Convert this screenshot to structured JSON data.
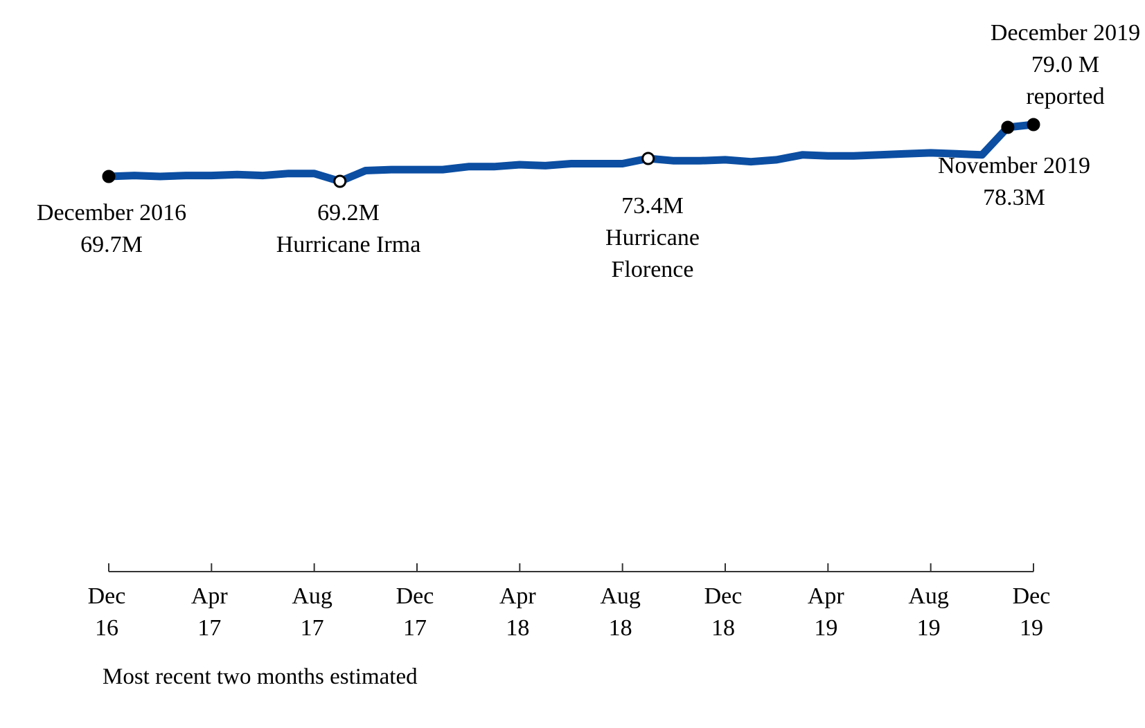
{
  "chart_data": {
    "type": "line",
    "x": [
      "Dec 2016",
      "Jan 2017",
      "Feb 2017",
      "Mar 2017",
      "Apr 2017",
      "May 2017",
      "Jun 2017",
      "Jul 2017",
      "Aug 2017",
      "Sep 2017",
      "Oct 2017",
      "Nov 2017",
      "Dec 2017",
      "Jan 2018",
      "Feb 2018",
      "Mar 2018",
      "Apr 2018",
      "May 2018",
      "Jun 2018",
      "Jul 2018",
      "Aug 2018",
      "Sep 2018",
      "Oct 2018",
      "Nov 2018",
      "Dec 2018",
      "Jan 2019",
      "Feb 2019",
      "Mar 2019",
      "Apr 2019",
      "May 2019",
      "Jun 2019",
      "Jul 2019",
      "Aug 2019",
      "Sep 2019",
      "Oct 2019",
      "Nov 2019",
      "Dec 2019"
    ],
    "series": [
      {
        "color": "#0b4ea2",
        "values": [
          69.7,
          69.8,
          69.7,
          69.8,
          69.8,
          69.9,
          69.8,
          70.0,
          70.0,
          69.2,
          70.3,
          70.4,
          70.4,
          70.4,
          70.7,
          70.7,
          70.9,
          70.8,
          71.0,
          71.0,
          71.0,
          73.4,
          71.3,
          71.3,
          71.4,
          71.2,
          71.4,
          71.9,
          71.8,
          71.8,
          71.9,
          72.0,
          72.1,
          72.0,
          71.9,
          78.3,
          79.0
        ]
      }
    ],
    "xticks": [
      {
        "line1": "Dec",
        "line2": "16"
      },
      {
        "line1": "Apr",
        "line2": "17"
      },
      {
        "line1": "Aug",
        "line2": "17"
      },
      {
        "line1": "Dec",
        "line2": "17"
      },
      {
        "line1": "Apr",
        "line2": "18"
      },
      {
        "line1": "Aug",
        "line2": "18"
      },
      {
        "line1": "Dec",
        "line2": "18"
      },
      {
        "line1": "Apr",
        "line2": "19"
      },
      {
        "line1": "Aug",
        "line2": "19"
      },
      {
        "line1": "Dec",
        "line2": "19"
      }
    ],
    "annotations": [
      {
        "point": 0,
        "marker": "filled",
        "lines": [
          "December 2016",
          "69.7M"
        ]
      },
      {
        "point": 9,
        "marker": "open",
        "lines": [
          "69.2M",
          "Hurricane Irma"
        ]
      },
      {
        "point": 21,
        "marker": "open",
        "lines": [
          "73.4M",
          "Hurricane",
          "Florence"
        ]
      },
      {
        "point": 35,
        "marker": "filled",
        "lines": [
          "November 2019",
          "78.3M"
        ]
      },
      {
        "point": 36,
        "marker": "filled",
        "lines": [
          "December 2019",
          "79.0 M",
          "reported"
        ]
      }
    ],
    "grid": false
  },
  "footnote": "Most recent two months estimated"
}
